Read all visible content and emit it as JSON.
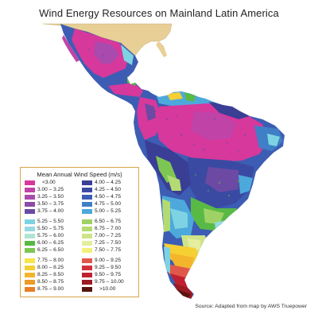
{
  "map": {
    "title": "Wind Energy Resources on Mainland Latin America",
    "source": "Source: Adapted from map by AWS Truepower"
  },
  "legend": {
    "title": "Mean Annual Wind Speed (m/s)",
    "columns": [
      [
        {
          "label": "<3.00",
          "color": "#d6389c"
        },
        {
          "label": "3.00 – 3.25",
          "color": "#c043a8"
        },
        {
          "label": "3.25 – 3.50",
          "color": "#a94aae"
        },
        {
          "label": "3.50 – 3.75",
          "color": "#8b4aa8"
        },
        {
          "label": "3.75 – 4.00",
          "color": "#6c4aa3"
        },
        {
          "label": "5.25 – 5.50",
          "color": "#7ed3e3"
        },
        {
          "label": "5.50 – 5.75",
          "color": "#96d9e2"
        },
        {
          "label": "5.75 – 6.00",
          "color": "#b1e3d6"
        },
        {
          "label": "6.00 – 6.25",
          "color": "#59b945"
        },
        {
          "label": "6.25 – 6.50",
          "color": "#7dc653"
        },
        {
          "label": "7.75 – 8.00",
          "color": "#f7e54a"
        },
        {
          "label": "8.00 – 8.25",
          "color": "#f6cf33"
        },
        {
          "label": "8.25 – 8.50",
          "color": "#f2b52c"
        },
        {
          "label": "8.50 – 8.75",
          "color": "#ec9b28"
        },
        {
          "label": "8.75 – 9.00",
          "color": "#e87f25"
        }
      ],
      [
        {
          "label": "4.00 – 4.25",
          "color": "#3a3e95"
        },
        {
          "label": "4.25 – 4.50",
          "color": "#3a4aa2"
        },
        {
          "label": "4.50 – 4.75",
          "color": "#3c5db3"
        },
        {
          "label": "4.75 – 5.00",
          "color": "#3f7fc6"
        },
        {
          "label": "5.00 – 5.25",
          "color": "#4da9dc"
        },
        {
          "label": "6.50 – 6.75",
          "color": "#9fd266"
        },
        {
          "label": "6.75 – 7.00",
          "color": "#b4db72"
        },
        {
          "label": "7.00 – 7.25",
          "color": "#cfe488"
        },
        {
          "label": "7.25 – 7.50",
          "color": "#e5ed9f"
        },
        {
          "label": "7.50 – 7.75",
          "color": "#f2f07a"
        },
        {
          "label": "9.00 – 9.25",
          "color": "#e0584a"
        },
        {
          "label": "9.25 – 9.50",
          "color": "#d3313a"
        },
        {
          "label": "9.50 – 9.75",
          "color": "#c0202f"
        },
        {
          "label": "9.75 – 10.00",
          "color": "#9b1a24"
        },
        {
          "label": ">10.00",
          "color": "#5a1410"
        }
      ]
    ]
  },
  "colors": {
    "background_land": "#e8cf96",
    "border": "#d7a64a"
  }
}
